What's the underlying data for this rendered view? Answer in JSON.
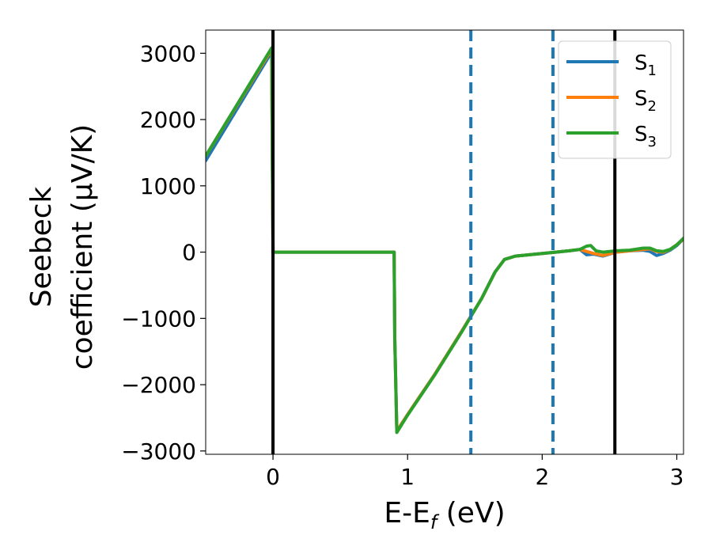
{
  "chart_data": {
    "type": "line",
    "xlabel": "E-E_f (eV)",
    "ylabel_line1": "Seebeck",
    "ylabel_line2": "coefficient  (μV/K)",
    "xlim": [
      -0.5,
      3.05
    ],
    "ylim": [
      -3050,
      3350
    ],
    "xticks": [
      0,
      1,
      2,
      3
    ],
    "xtick_labels": [
      "0",
      "1",
      "2",
      "3"
    ],
    "yticks": [
      -3000,
      -2000,
      -1000,
      0,
      1000,
      2000,
      3000
    ],
    "ytick_labels": [
      "−3000",
      "−2000",
      "−1000",
      "0",
      "1000",
      "2000",
      "3000"
    ],
    "grid": false,
    "legend_position": "top-right",
    "vertical_lines": [
      {
        "x": 0.0,
        "style": "solid",
        "color": "#000000"
      },
      {
        "x": 2.54,
        "style": "solid",
        "color": "#000000"
      },
      {
        "x": 1.47,
        "style": "dashed",
        "color": "#1f77b4"
      },
      {
        "x": 2.08,
        "style": "dashed",
        "color": "#1f77b4"
      }
    ],
    "series": [
      {
        "name": "S1",
        "color": "#1f77b4",
        "x": [
          -0.5,
          -0.01,
          -0.005,
          0.0,
          0.9,
          0.905,
          0.92,
          1.0,
          1.2,
          1.4,
          1.55,
          1.65,
          1.72,
          1.8,
          1.95,
          2.1,
          2.2,
          2.28,
          2.33,
          2.38,
          2.45,
          2.55,
          2.65,
          2.75,
          2.8,
          2.85,
          2.9,
          2.95,
          3.0,
          3.05
        ],
        "y": [
          1380,
          3020,
          1500,
          0,
          0,
          -1300,
          -2700,
          -2450,
          -1850,
          -1200,
          -700,
          -300,
          -110,
          -60,
          -30,
          0,
          20,
          40,
          -40,
          -30,
          -60,
          0,
          20,
          30,
          10,
          -50,
          -20,
          30,
          100,
          200
        ]
      },
      {
        "name": "S2",
        "color": "#ff7f0e",
        "x": [
          -0.5,
          -0.01,
          -0.005,
          0.0,
          0.9,
          0.905,
          0.92,
          1.0,
          1.2,
          1.4,
          1.55,
          1.65,
          1.72,
          1.8,
          1.95,
          2.1,
          2.2,
          2.28,
          2.33,
          2.38,
          2.45,
          2.55,
          2.65,
          2.75,
          2.8,
          2.85,
          2.9,
          2.95,
          3.0,
          3.05
        ],
        "y": [
          1450,
          3060,
          1500,
          0,
          0,
          -1300,
          -2700,
          -2450,
          -1850,
          -1200,
          -700,
          -300,
          -110,
          -60,
          -30,
          0,
          20,
          40,
          10,
          -20,
          -50,
          0,
          20,
          40,
          50,
          10,
          0,
          40,
          110,
          200
        ]
      },
      {
        "name": "S3",
        "color": "#2ca02c",
        "x": [
          -0.5,
          -0.01,
          -0.005,
          0.0,
          0.9,
          0.905,
          0.92,
          1.0,
          1.2,
          1.4,
          1.55,
          1.65,
          1.72,
          1.8,
          1.95,
          2.1,
          2.2,
          2.28,
          2.33,
          2.36,
          2.4,
          2.45,
          2.55,
          2.65,
          2.75,
          2.8,
          2.85,
          2.9,
          2.95,
          3.0,
          3.05
        ],
        "y": [
          1450,
          3080,
          1500,
          0,
          0,
          -1300,
          -2720,
          -2460,
          -1860,
          -1210,
          -700,
          -300,
          -110,
          -60,
          -30,
          0,
          20,
          40,
          90,
          100,
          20,
          0,
          20,
          30,
          60,
          60,
          20,
          10,
          40,
          110,
          210
        ]
      }
    ],
    "legend": [
      {
        "label": "S",
        "sub": "1",
        "color": "#1f77b4"
      },
      {
        "label": "S",
        "sub": "2",
        "color": "#ff7f0e"
      },
      {
        "label": "S",
        "sub": "3",
        "color": "#2ca02c"
      }
    ]
  }
}
